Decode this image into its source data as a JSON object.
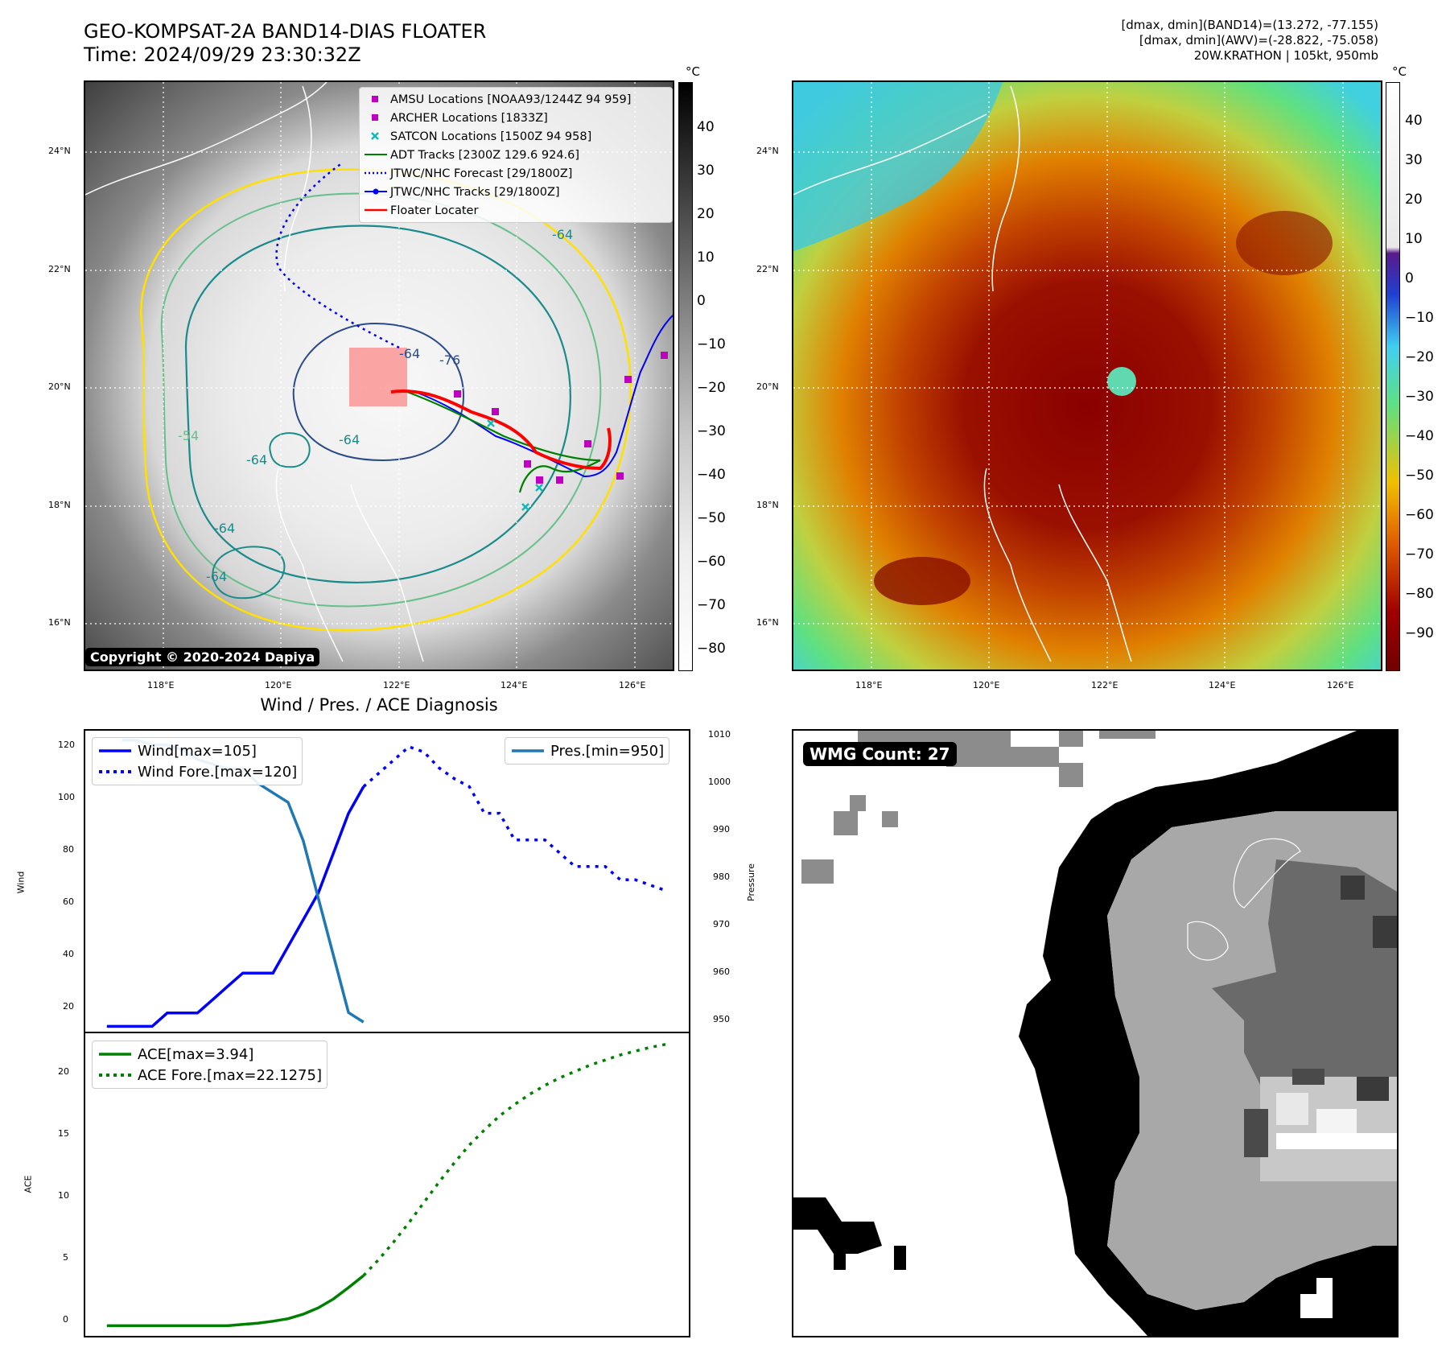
{
  "header": {
    "title_line1": "GEO-KOMPSAT-2A BAND14-DIAS FLOATER",
    "title_line2": "Time: 2024/09/29 23:30:32Z",
    "info_line1": "[dmax, dmin](BAND14)=(13.272, -77.155)",
    "info_line2": "[dmax, dmin](AWV)=(-28.822, -75.058)",
    "info_line3": "20W.KRATHON | 105kt, 950mb"
  },
  "map_axes": {
    "lat_labels": [
      "24°N",
      "22°N",
      "20°N",
      "18°N",
      "16°N"
    ],
    "lon_labels": [
      "118°E",
      "120°E",
      "122°E",
      "124°E",
      "126°E"
    ]
  },
  "left_map": {
    "copyright": "Copyright © 2020-2024 Dapiya",
    "colorbar_unit": "°C",
    "colorbar_ticks": [
      "40",
      "30",
      "20",
      "10",
      "0",
      "−10",
      "−20",
      "−30",
      "−40",
      "−50",
      "−60",
      "−70",
      "−80"
    ],
    "contour_labels": [
      "-64",
      "-76",
      "-64",
      "-64",
      "-64",
      "-64",
      "-64",
      "-54"
    ],
    "legend": [
      {
        "label": "AMSU Locations [NOAA93/1244Z 94 959]",
        "marker": "square",
        "color": "#c000c0"
      },
      {
        "label": "ARCHER Locations [1833Z]",
        "marker": "square",
        "color": "#c000c0"
      },
      {
        "label": "SATCON Locations [1500Z 94 958]",
        "marker": "x",
        "color": "#10b8b8"
      },
      {
        "label": "ADT Tracks [2300Z 129.6 924.6]",
        "marker": "line",
        "color": "#008000"
      },
      {
        "label": "JTWC/NHC Forecast [29/1800Z]",
        "marker": "dotted",
        "color": "#0000ff"
      },
      {
        "label": "JTWC/NHC Tracks [29/1800Z]",
        "marker": "line-dot",
        "color": "#0000ff"
      },
      {
        "label": "Floater Locater",
        "marker": "line",
        "color": "#ff0000"
      }
    ]
  },
  "right_map": {
    "colorbar_unit": "°C",
    "colorbar_ticks": [
      "40",
      "30",
      "20",
      "10",
      "0",
      "−10",
      "−20",
      "−30",
      "−40",
      "−50",
      "−60",
      "−70",
      "−80",
      "−90"
    ]
  },
  "diagnosis": {
    "title": "Wind / Pres. / ACE Diagnosis",
    "wind_ylabel": "Wind",
    "pres_ylabel": "Pressure",
    "ace_ylabel": "ACE",
    "wind_ticks": [
      "120",
      "100",
      "80",
      "60",
      "40",
      "20"
    ],
    "pres_ticks": [
      "1010",
      "1000",
      "990",
      "980",
      "970",
      "960",
      "950"
    ],
    "ace_ticks": [
      "20",
      "15",
      "10",
      "5",
      "0"
    ],
    "legend_wind": [
      "Wind[max=105]",
      "Wind Fore.[max=120]"
    ],
    "legend_pres": [
      "Pres.[min=950]"
    ],
    "legend_ace": [
      "ACE[max=3.94]",
      "ACE Fore.[max=22.1275]"
    ]
  },
  "wmg": {
    "label": "WMG Count: 27"
  },
  "colors": {
    "wind": "#0000ff",
    "pressure": "#1f77b4",
    "ace": "#008000",
    "track_red": "#ff0000",
    "contour_yellow": "#ffe000",
    "contour_teal": "#1a8a8a"
  },
  "chart_data": [
    {
      "type": "line",
      "title": "Wind / Pres. / ACE Diagnosis",
      "ylabel": "Wind",
      "ylim": [
        13,
        126
      ],
      "x": [
        0,
        1,
        2,
        3,
        4,
        5,
        6,
        7,
        8,
        9,
        10,
        11,
        12,
        13,
        14,
        15,
        16,
        17,
        18,
        19,
        20,
        21,
        22,
        23,
        24,
        25,
        26,
        27,
        28,
        29,
        30,
        31,
        32,
        33,
        34,
        35,
        36,
        37
      ],
      "series": [
        {
          "name": "Wind[max=105]",
          "x": [
            0,
            1,
            2,
            3,
            4,
            5,
            6,
            7,
            8,
            9,
            10,
            11,
            12,
            13,
            14,
            15,
            16,
            17
          ],
          "values": [
            15,
            15,
            15,
            15,
            20,
            20,
            20,
            25,
            30,
            35,
            35,
            35,
            45,
            55,
            65,
            80,
            95,
            105
          ]
        },
        {
          "name": "Wind Fore.[max=120]",
          "x": [
            17,
            18,
            19,
            20,
            21,
            22,
            23,
            24,
            25,
            26,
            27,
            28,
            29,
            30,
            31,
            32,
            33,
            34,
            35,
            36,
            37
          ],
          "values": [
            105,
            110,
            115,
            120,
            118,
            112,
            108,
            105,
            95,
            95,
            85,
            85,
            85,
            80,
            75,
            75,
            75,
            70,
            70,
            68,
            66
          ]
        }
      ]
    },
    {
      "type": "line",
      "ylabel": "Pressure",
      "ylim": [
        948,
        1011
      ],
      "series": [
        {
          "name": "Pres.[min=950]",
          "x": [
            1,
            2,
            3,
            4,
            5,
            6,
            7,
            8,
            9,
            10,
            11,
            12,
            13,
            14,
            15,
            16,
            17
          ],
          "values": [
            1009,
            1009,
            1008,
            1008,
            1007,
            1005,
            1004,
            1003,
            1003,
            1000,
            998,
            996,
            988,
            976,
            964,
            952,
            950
          ]
        }
      ]
    },
    {
      "type": "line",
      "ylabel": "ACE",
      "ylim": [
        -0.8,
        23
      ],
      "series": [
        {
          "name": "ACE[max=3.94]",
          "x": [
            0,
            1,
            2,
            3,
            4,
            5,
            6,
            7,
            8,
            9,
            10,
            11,
            12,
            13,
            14,
            15,
            16,
            17
          ],
          "values": [
            0,
            0,
            0,
            0,
            0,
            0,
            0,
            0,
            0,
            0.1,
            0.2,
            0.35,
            0.55,
            0.9,
            1.4,
            2.1,
            3.0,
            3.94
          ]
        },
        {
          "name": "ACE Fore.[max=22.1275]",
          "x": [
            17,
            18,
            19,
            20,
            21,
            22,
            23,
            24,
            25,
            26,
            27,
            28,
            29,
            30,
            31,
            32,
            33,
            34,
            35,
            36,
            37
          ],
          "values": [
            3.94,
            5.2,
            6.6,
            8.1,
            9.7,
            11.3,
            12.8,
            14.2,
            15.4,
            16.5,
            17.4,
            18.2,
            18.9,
            19.5,
            20.0,
            20.5,
            20.9,
            21.3,
            21.6,
            21.9,
            22.1275
          ]
        }
      ]
    }
  ]
}
